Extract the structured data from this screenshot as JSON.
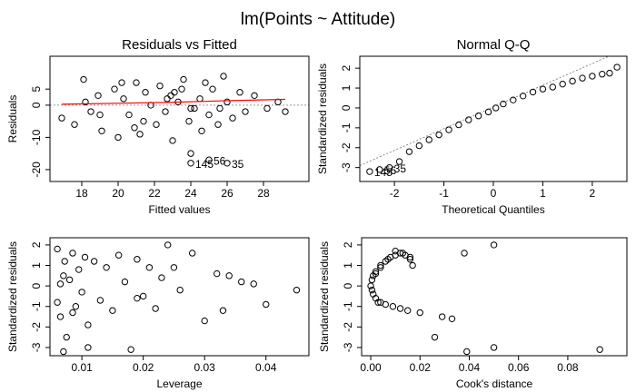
{
  "title": "lm(Points ~ Attitude)",
  "chart_data": [
    {
      "type": "scatter",
      "title": "Residuals vs Fitted",
      "x_label": "Fitted values",
      "y_label": "Residuals",
      "x": [
        16.9,
        17.6,
        18.1,
        18.2,
        18.9,
        19.1,
        19.8,
        20.0,
        20.3,
        20.6,
        21.0,
        21.2,
        21.5,
        21.8,
        22.1,
        22.3,
        22.6,
        22.9,
        23.0,
        23.3,
        23.6,
        23.9,
        24.0,
        24.2,
        24.5,
        24.8,
        25.0,
        25.2,
        25.5,
        25.8,
        26.0,
        26.3,
        26.7,
        27.0,
        27.5,
        28.2,
        28.8,
        29.2,
        24.0,
        24.0,
        25.0,
        26.0,
        19.0,
        20.2,
        21.4,
        22.7,
        23.5,
        24.6,
        25.6,
        18.5,
        20.9,
        23.1
      ],
      "values": [
        -4,
        -6,
        8,
        1,
        3,
        -8,
        5,
        -10,
        2,
        -3,
        7,
        -9,
        4,
        0,
        -6,
        6,
        -2,
        3,
        -11,
        1,
        8,
        -5,
        -15,
        -1,
        2,
        7,
        -3,
        5,
        -6,
        9,
        1,
        -4,
        4,
        -2,
        3,
        -1,
        1,
        -2,
        -18,
        -1,
        -17,
        -18,
        -3,
        7,
        -5,
        2,
        5,
        -8,
        -1,
        -2,
        -7,
        4
      ],
      "smooth": {
        "color": "#ff0000",
        "x": [
          16.9,
          20,
          23,
          26,
          29.2
        ],
        "values": [
          0.3,
          0.6,
          0.9,
          1.4,
          1.8
        ]
      },
      "hline": 0,
      "annotations": [
        {
          "text": "145",
          "x": 24.0,
          "y": -18
        },
        {
          "text": "56",
          "x": 25.0,
          "y": -17
        },
        {
          "text": "35",
          "x": 26.0,
          "y": -18
        }
      ],
      "xlim": [
        16.25,
        30.5
      ],
      "xticks": [
        18,
        20,
        22,
        24,
        26,
        28
      ],
      "ylim": [
        -23.7,
        15.2
      ],
      "yticks": [
        -20,
        -10,
        0,
        5
      ]
    },
    {
      "type": "scatter",
      "title": "Normal Q-Q",
      "x_label": "Theoretical Quantiles",
      "y_label": "Standardized residuals",
      "x": [
        -2.5,
        -2.3,
        -2.1,
        -1.9,
        -1.7,
        -1.5,
        -1.3,
        -1.1,
        -0.9,
        -0.7,
        -0.5,
        -0.3,
        -0.1,
        0.05,
        0.2,
        0.4,
        0.6,
        0.8,
        1.0,
        1.2,
        1.4,
        1.6,
        1.8,
        2.0,
        2.2,
        2.35,
        2.5
      ],
      "values": [
        -3.2,
        -3.1,
        -3.0,
        -2.7,
        -2.2,
        -1.9,
        -1.6,
        -1.35,
        -1.1,
        -0.85,
        -0.6,
        -0.4,
        -0.2,
        0,
        0.2,
        0.4,
        0.6,
        0.8,
        0.95,
        1.05,
        1.2,
        1.35,
        1.5,
        1.6,
        1.7,
        1.75,
        2.05
      ],
      "ref_line": {
        "x": [
          -2.7,
          2.7
        ],
        "values": [
          -2.9,
          3.0
        ]
      },
      "annotations": [
        {
          "text": "145",
          "x": -2.5,
          "y": -3.2
        },
        {
          "text": "56",
          "x": -2.3,
          "y": -3.1
        },
        {
          "text": "35",
          "x": -2.1,
          "y": -3.0
        }
      ],
      "xlim": [
        -2.7,
        2.7
      ],
      "xticks": [
        -2,
        -1,
        0,
        1,
        2
      ],
      "ylim": [
        -3.7,
        2.6
      ],
      "yticks": [
        -3,
        -2,
        -1,
        0,
        1,
        2
      ]
    },
    {
      "type": "scatter",
      "title": "",
      "x_label": "Leverage",
      "y_label": "Standardized residuals",
      "x": [
        0.006,
        0.0065,
        0.007,
        0.0072,
        0.0075,
        0.008,
        0.0085,
        0.009,
        0.0095,
        0.01,
        0.0105,
        0.011,
        0.012,
        0.013,
        0.014,
        0.015,
        0.016,
        0.017,
        0.018,
        0.019,
        0.02,
        0.021,
        0.022,
        0.023,
        0.024,
        0.025,
        0.026,
        0.028,
        0.03,
        0.032,
        0.033,
        0.034,
        0.036,
        0.038,
        0.04,
        0.045,
        0.006,
        0.007,
        0.0085,
        0.011,
        0.019,
        0.0065
      ],
      "values": [
        1.8,
        -1.5,
        0.5,
        1.2,
        -2.5,
        0.3,
        1.6,
        -1,
        0.8,
        -0.3,
        1.4,
        -1.9,
        1.2,
        -0.7,
        0.9,
        -1.2,
        1.5,
        0.2,
        -3.1,
        1.3,
        -0.5,
        0.9,
        -1.1,
        0.4,
        2.0,
        0.9,
        -0.2,
        1.6,
        -1.7,
        0.6,
        -1.2,
        0.5,
        0.2,
        0.1,
        -0.9,
        -0.2,
        -0.8,
        -3.2,
        -1.3,
        -3.0,
        -0.6,
        0.1
      ],
      "xlim": [
        0.0048,
        0.047
      ],
      "xticks": [
        0.01,
        0.02,
        0.03,
        0.04
      ],
      "ylim": [
        -3.4,
        2.35
      ],
      "yticks": [
        -3,
        -2,
        -1,
        0,
        1,
        2
      ]
    },
    {
      "type": "scatter",
      "title": "",
      "x_label": "Cook's distance",
      "y_label": "Standardized residuals",
      "x": [
        0.0,
        0.0005,
        0.001,
        0.002,
        0.003,
        0.004,
        0.006,
        0.008,
        0.01,
        0.012,
        0.014,
        0.016,
        0.017,
        0.015,
        0.012,
        0.009,
        0.006,
        0.004,
        0.002,
        0.001,
        0.0005,
        0.002,
        0.004,
        0.007,
        0.01,
        0.013,
        0.016,
        0.02,
        0.026,
        0.029,
        0.033,
        0.038,
        0.039,
        0.05,
        0.05,
        0.093
      ],
      "values": [
        0,
        0.3,
        -0.4,
        0.7,
        -0.8,
        1.0,
        1.2,
        1.4,
        1.5,
        1.6,
        1.5,
        1.3,
        1.0,
        -1.2,
        -1.1,
        -1.0,
        -0.9,
        -0.8,
        -0.6,
        0.5,
        -0.2,
        0.6,
        0.9,
        1.3,
        1.7,
        1.6,
        1.4,
        -1.3,
        -2.5,
        -1.5,
        -1.6,
        1.6,
        -3.2,
        2.0,
        -3.0,
        -3.1
      ],
      "xlim": [
        -0.0037,
        0.104
      ],
      "xticks": [
        {
          "value": 0,
          "label": "0.00"
        },
        0.02,
        0.04,
        0.06,
        0.08
      ],
      "ylim": [
        -3.4,
        2.35
      ],
      "yticks": [
        -3,
        -2,
        -1,
        0,
        1,
        2
      ]
    }
  ]
}
